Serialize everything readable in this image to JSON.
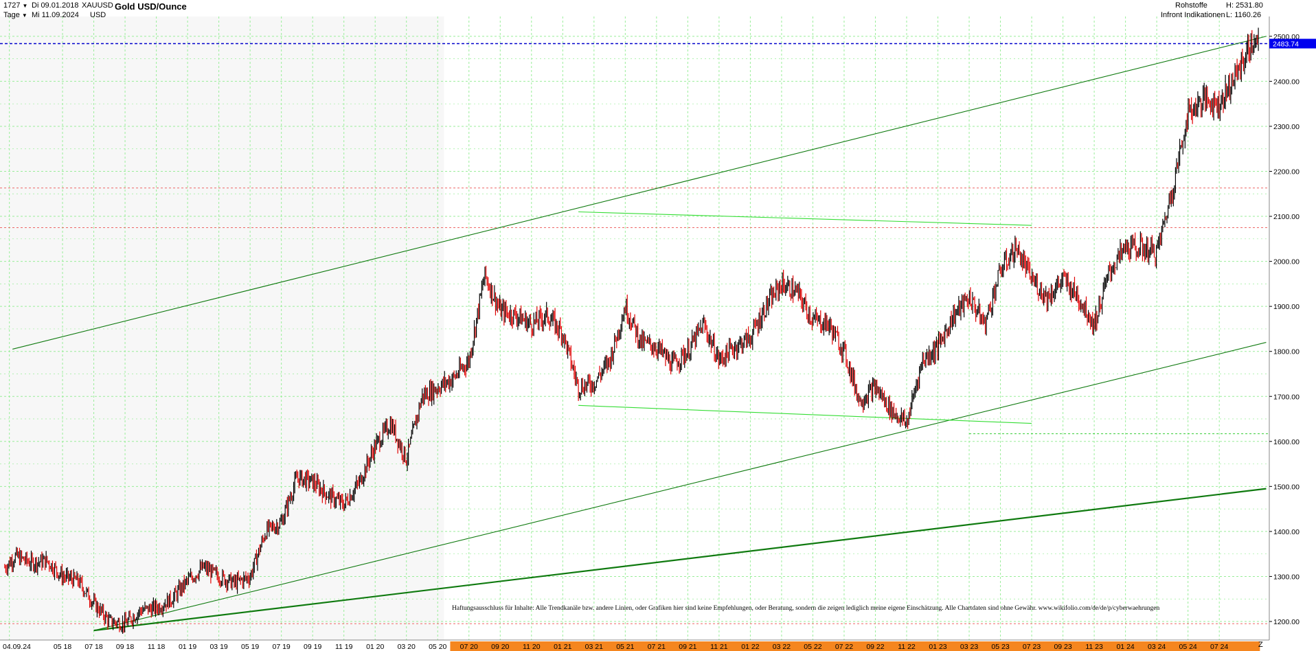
{
  "header": {
    "bar_count": "1727",
    "interval": "Tage",
    "start_date": "Di 09.01.2018",
    "end_date": "Mi 11.09.2024",
    "symbol": "XAUUSD",
    "currency": "USD",
    "title": "Gold USD/Ounce",
    "category": "Rohstoffe",
    "source": "Infront Indikationen",
    "high_label": "H: 2531.80",
    "low_label": "L: 1160.26"
  },
  "current_price": "2483.74",
  "disclaimer": "Haftungsausschluss für Inhalte: Alle Trendkanäle bzw. andere Linien, oder Grafiken hier sind keine Empfehlungen, oder Beratung, sondern die zeigen lediglich meine eigene Einschätzung. Alle Chartdaten sind ohne Gewähr.  www.wikifolio.com/de/de/p/cyberwaehrungen",
  "z_button": "Z",
  "colors": {
    "candle_up": "#000000",
    "candle_down": "#e00000",
    "trend_dark": "#0f7a0f",
    "trend_light": "#33dd33",
    "grid": "#99ee99",
    "price_line": "#0000cc",
    "resistance": "#ee6666",
    "orange_band": "#f5861f"
  },
  "chart_data": {
    "type": "line",
    "title": "Gold USD/Ounce",
    "ylim": [
      1180,
      2540
    ],
    "y_ticks": [
      1200,
      1300,
      1400,
      1500,
      1600,
      1700,
      1800,
      1900,
      2000,
      2100,
      2200,
      2300,
      2400,
      2500
    ],
    "y_tick_labels": [
      "1200.00",
      "1300.00",
      "1400.00",
      "1500.00",
      "1600.00",
      "1700.00",
      "1800.00",
      "1900.00",
      "2000.00",
      "2100.00",
      "2200.00",
      "2300.00",
      "2400.00",
      "2500.00"
    ],
    "x_labels": [
      "04.09.24",
      "05 18",
      "07 18",
      "09 18",
      "11 18",
      "01 19",
      "03 19",
      "05 19",
      "07 19",
      "09 19",
      "11 19",
      "01 20",
      "03 20",
      "05 20",
      "07 20",
      "09 20",
      "11 20",
      "01 21",
      "03 21",
      "05 21",
      "07 21",
      "09 21",
      "11 21",
      "01 22",
      "03 22",
      "05 22",
      "07 22",
      "09 22",
      "11 22",
      "01 23",
      "03 23",
      "05 23",
      "07 23",
      "09 23",
      "11 23",
      "01 24",
      "03 24",
      "05 24",
      "07 24"
    ],
    "x_label_months": [
      0.6,
      4,
      6,
      8,
      10,
      12,
      14,
      16,
      18,
      20,
      22,
      24,
      26,
      28,
      30,
      32,
      34,
      36,
      38,
      40,
      42,
      44,
      46,
      48,
      50,
      52,
      54,
      56,
      58,
      60,
      62,
      64,
      66,
      68,
      70,
      72,
      74,
      76,
      78
    ],
    "grid": true,
    "series": [
      {
        "name": "XAUUSD",
        "x_month": [
          0.3,
          1,
          2,
          3,
          4,
          5,
          6,
          7,
          8,
          9,
          10,
          11,
          12,
          13,
          14,
          15,
          16,
          17,
          18,
          19,
          20,
          21,
          22,
          23,
          24,
          25,
          26,
          27,
          28,
          29,
          30,
          31,
          32,
          33,
          34,
          35,
          36,
          37,
          38,
          39,
          40,
          41,
          42,
          43,
          44,
          45,
          46,
          47,
          48,
          49,
          50,
          51,
          52,
          53,
          54,
          55,
          56,
          57,
          58,
          59,
          60,
          61,
          62,
          63,
          64,
          65,
          66,
          67,
          68,
          69,
          70,
          71,
          72,
          73,
          74,
          75,
          76,
          77,
          78,
          79,
          80,
          80.5
        ],
        "close": [
          1320,
          1345,
          1330,
          1335,
          1300,
          1290,
          1240,
          1200,
          1195,
          1225,
          1230,
          1250,
          1290,
          1320,
          1300,
          1285,
          1300,
          1400,
          1420,
          1520,
          1510,
          1480,
          1460,
          1510,
          1590,
          1640,
          1560,
          1700,
          1720,
          1740,
          1780,
          1970,
          1890,
          1880,
          1860,
          1880,
          1840,
          1720,
          1730,
          1780,
          1900,
          1820,
          1810,
          1770,
          1800,
          1860,
          1780,
          1810,
          1830,
          1900,
          1950,
          1930,
          1870,
          1860,
          1800,
          1690,
          1720,
          1670,
          1640,
          1780,
          1810,
          1880,
          1920,
          1860,
          1980,
          2030,
          1960,
          1920,
          1960,
          1920,
          1860,
          1980,
          2030,
          2030,
          2020,
          2160,
          2330,
          2360,
          2350,
          2410,
          2480,
          2484
        ]
      }
    ],
    "trend_lines": [
      {
        "from": [
          0.8,
          1805
        ],
        "to": [
          81,
          2500
        ],
        "style": "upper channel"
      },
      {
        "from": [
          6.0,
          1180
        ],
        "to": [
          81,
          1820
        ],
        "style": "lower channel"
      },
      {
        "from": [
          6.0,
          1180
        ],
        "to": [
          81,
          1495
        ],
        "style": "long-term support"
      },
      {
        "from": [
          37,
          2110
        ],
        "to": [
          66,
          2080
        ],
        "style": "range top"
      },
      {
        "from": [
          37,
          1680
        ],
        "to": [
          66,
          1640
        ],
        "style": "range bottom"
      }
    ],
    "horizontal_levels": [
      {
        "value": 2483.74,
        "style": "current price"
      },
      {
        "value": 2075,
        "style": "resistance"
      },
      {
        "value": 2163,
        "style": "resistance"
      },
      {
        "value": 1195,
        "style": "resistance"
      },
      {
        "value": 1617,
        "style": "support"
      }
    ]
  }
}
